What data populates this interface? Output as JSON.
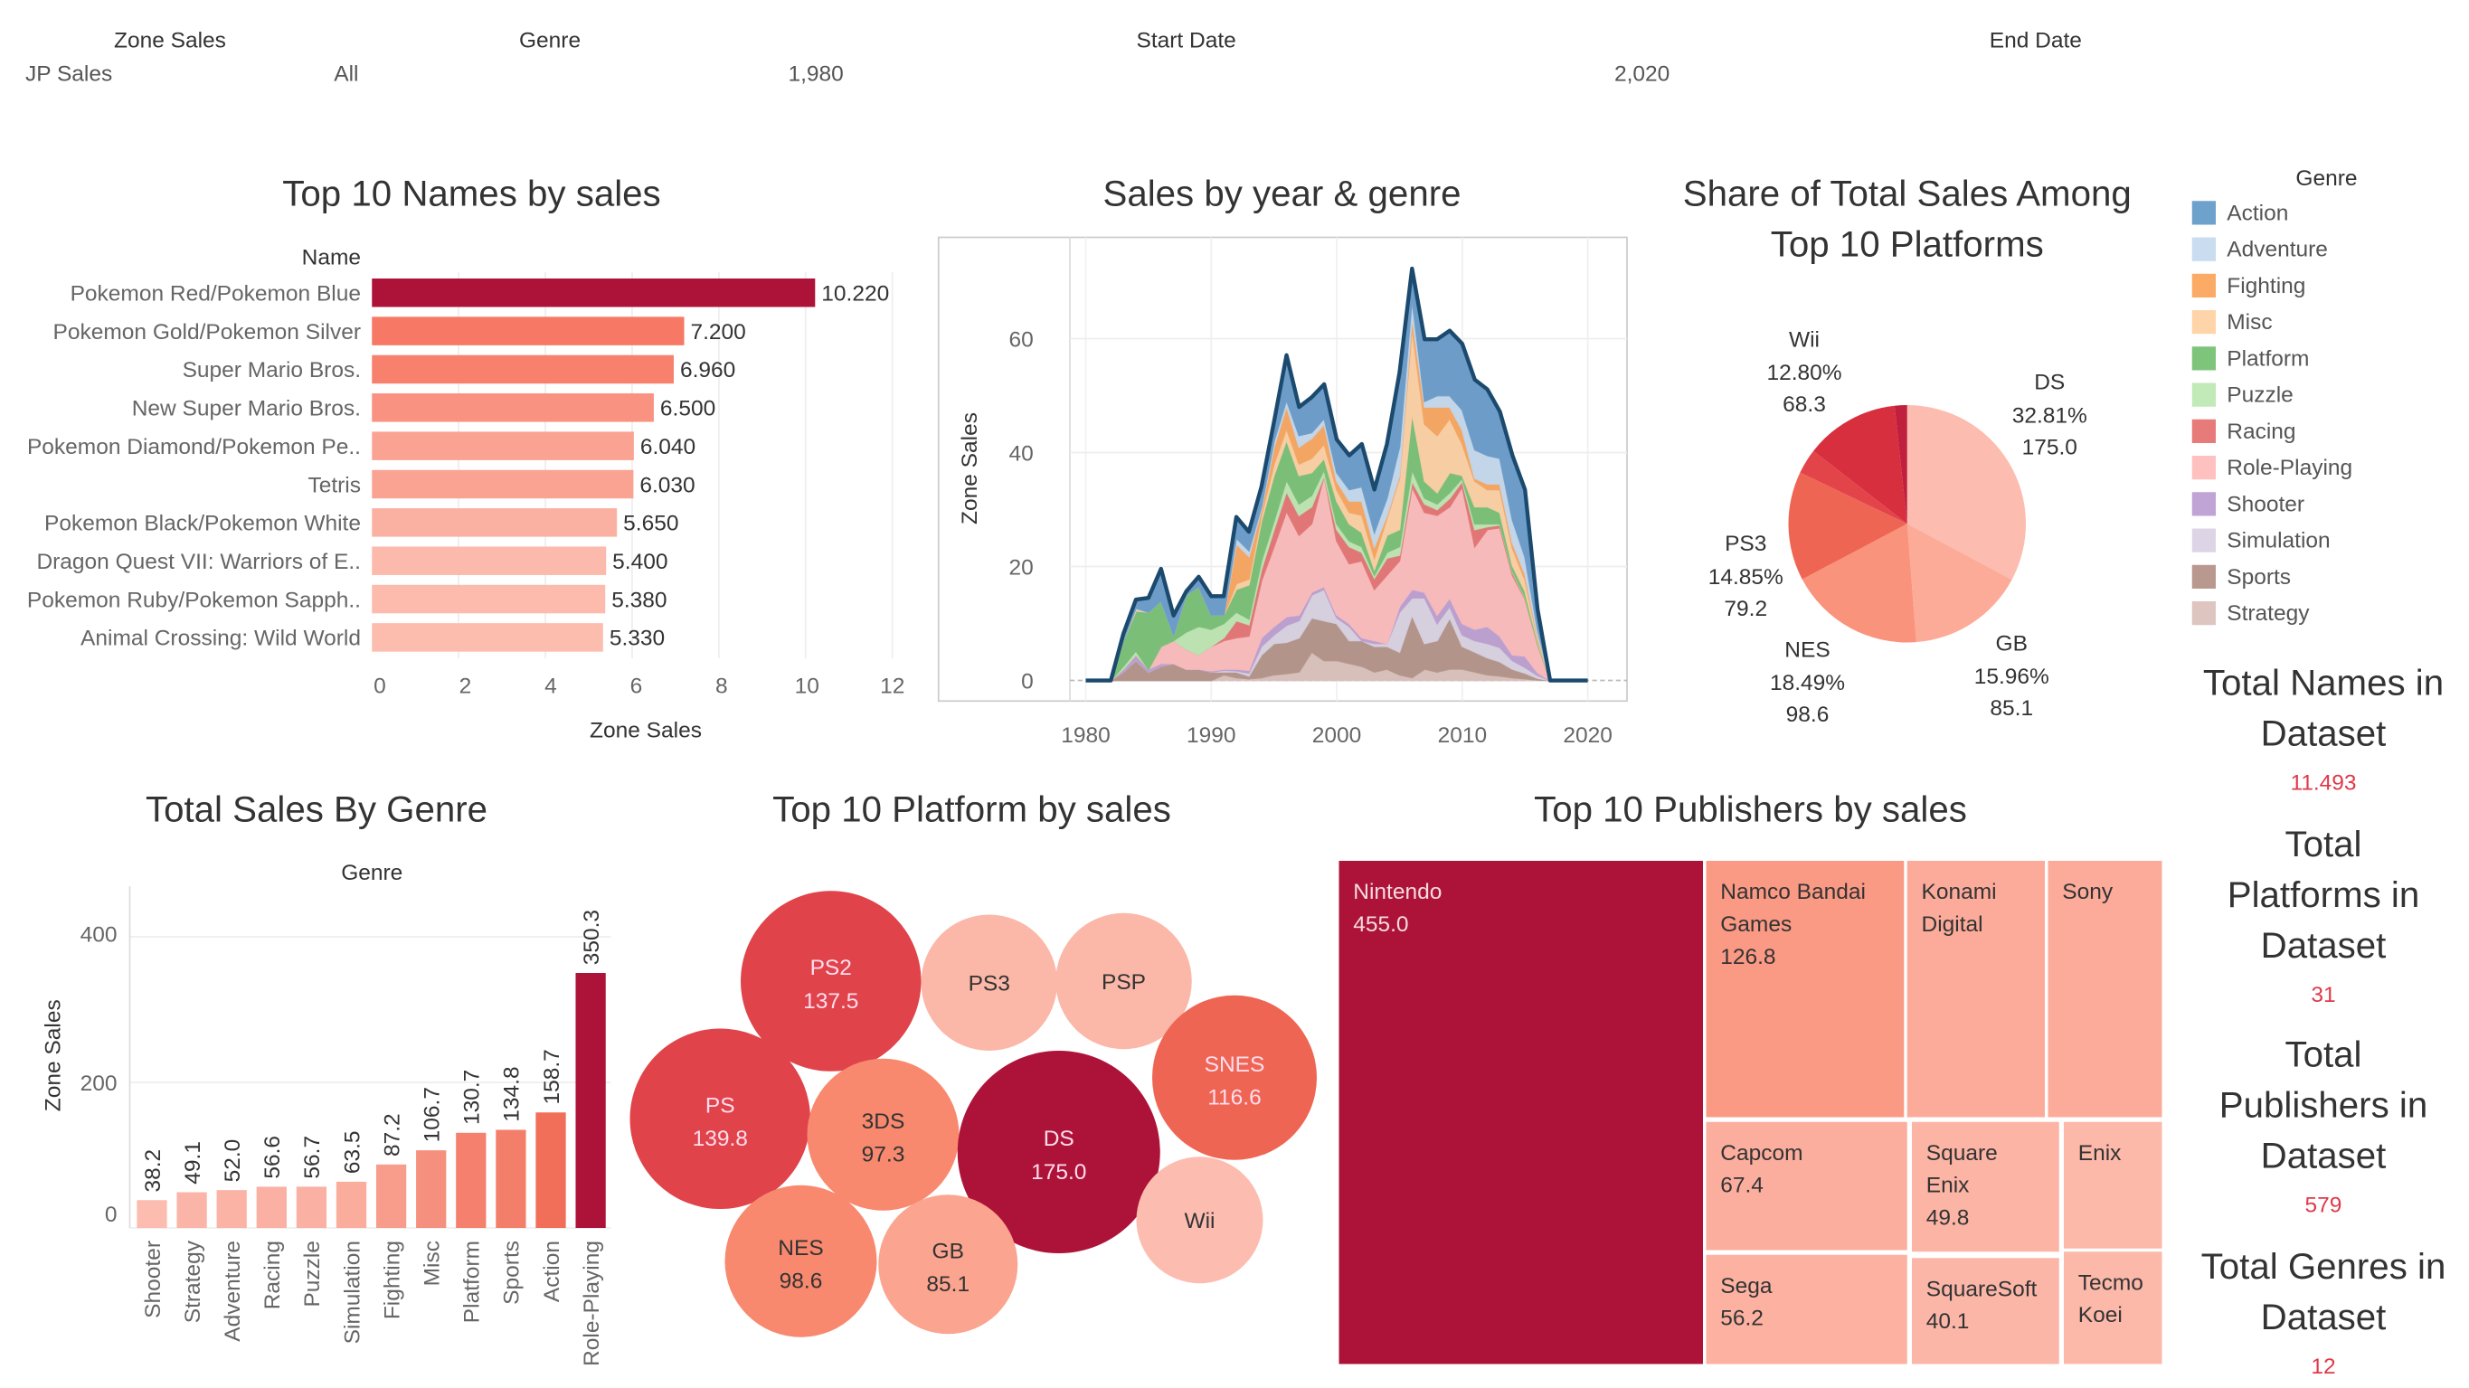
{
  "filters": [
    {
      "label": "Zone Sales",
      "value": "JP Sales"
    },
    {
      "label": "Genre",
      "value": "All"
    },
    {
      "label": "Start Date",
      "value": "1,980"
    },
    {
      "label": "End Date",
      "value": "2,020"
    }
  ],
  "legend": {
    "title": "Genre",
    "items": [
      {
        "label": "Action",
        "color": "#6fa1cd"
      },
      {
        "label": "Adventure",
        "color": "#c9dcf0"
      },
      {
        "label": "Fighting",
        "color": "#fbab66"
      },
      {
        "label": "Misc",
        "color": "#ffd4a8"
      },
      {
        "label": "Platform",
        "color": "#7ec47b"
      },
      {
        "label": "Puzzle",
        "color": "#c2e9b8"
      },
      {
        "label": "Racing",
        "color": "#e77b7a"
      },
      {
        "label": "Role-Playing",
        "color": "#ffc0c0"
      },
      {
        "label": "Shooter",
        "color": "#c0a4d5"
      },
      {
        "label": "Simulation",
        "color": "#ddd5e5"
      },
      {
        "label": "Sports",
        "color": "#b9998f"
      },
      {
        "label": "Strategy",
        "color": "#dec5c0"
      }
    ]
  },
  "kpis": [
    {
      "title_lines": [
        "Total Names in",
        "Dataset"
      ],
      "value": "11.493"
    },
    {
      "title_lines": [
        "Total",
        "Platforms in",
        "Dataset"
      ],
      "value": "31"
    },
    {
      "title_lines": [
        "Total",
        "Publishers in",
        "Dataset"
      ],
      "value": "579"
    },
    {
      "title_lines": [
        "Total Genres in",
        "Dataset"
      ],
      "value": "12"
    }
  ],
  "colors": {
    "accent_dark": "#ad1338",
    "kpi_value": "#e0394a",
    "area_outline": "#1b4a6e"
  },
  "chart_data": [
    {
      "id": "top_names",
      "type": "bar",
      "orientation": "horizontal",
      "title": "Top 10 Names by sales",
      "category_header": "Name",
      "xlabel": "Zone Sales",
      "xlim": [
        0,
        12
      ],
      "xticks": [
        0,
        2,
        4,
        6,
        8,
        10,
        12
      ],
      "categories": [
        "Pokemon Red/Pokemon Blue",
        "Pokemon Gold/Pokemon Silver",
        "Super Mario Bros.",
        "New Super Mario Bros.",
        "Pokemon Diamond/Pokemon Pe..",
        "Tetris",
        "Pokemon Black/Pokemon White",
        "Dragon Quest VII: Warriors of E..",
        "Pokemon Ruby/Pokemon Sapph..",
        "Animal Crossing: Wild World"
      ],
      "values": [
        10.22,
        7.2,
        6.96,
        6.5,
        6.04,
        6.03,
        5.65,
        5.4,
        5.38,
        5.33
      ],
      "labels": [
        "10.220",
        "7.200",
        "6.960",
        "6.500",
        "6.040",
        "6.030",
        "5.650",
        "5.400",
        "5.380",
        "5.330"
      ]
    },
    {
      "id": "sales_year_genre",
      "type": "area",
      "stacked": true,
      "title": "Sales by year & genre",
      "ylabel": "Zone Sales",
      "xlim": [
        1980,
        2020
      ],
      "ylim": [
        0,
        75
      ],
      "xticks": [
        1980,
        1990,
        2000,
        2010,
        2020
      ],
      "yticks": [
        0,
        20,
        40,
        60
      ],
      "grid": true,
      "x": [
        1980,
        1981,
        1982,
        1983,
        1984,
        1985,
        1986,
        1987,
        1988,
        1989,
        1990,
        1991,
        1992,
        1993,
        1994,
        1995,
        1996,
        1997,
        1998,
        1999,
        2000,
        2001,
        2002,
        2003,
        2004,
        2005,
        2006,
        2007,
        2008,
        2009,
        2010,
        2011,
        2012,
        2013,
        2014,
        2015,
        2016,
        2017,
        2018,
        2019,
        2020
      ],
      "series_order_bottom_to_top": [
        "Strategy",
        "Sports",
        "Simulation",
        "Shooter",
        "Role-Playing",
        "Racing",
        "Puzzle",
        "Platform",
        "Misc",
        "Fighting",
        "Adventure",
        "Action"
      ],
      "series": [
        {
          "name": "Strategy",
          "values": [
            0,
            0,
            0,
            0,
            0,
            0,
            0,
            0,
            0,
            0,
            0,
            1,
            0.5,
            0.3,
            0.5,
            1,
            1.2,
            1.5,
            5,
            3.5,
            3.5,
            3,
            2.5,
            1.5,
            2,
            1,
            0.5,
            2,
            1.5,
            2,
            2,
            1.5,
            1,
            0.8,
            0.5,
            0.3,
            0.1,
            0,
            0,
            0,
            0
          ]
        },
        {
          "name": "Sports",
          "values": [
            0,
            0,
            0,
            1.5,
            3.5,
            1.5,
            2.5,
            3,
            2,
            2,
            1.5,
            0.5,
            1,
            0.5,
            4,
            5.5,
            5.5,
            6,
            6,
            7,
            6.5,
            4,
            4.5,
            4.5,
            4,
            4,
            11,
            4.5,
            5.5,
            9,
            4,
            3.5,
            3,
            2.5,
            1.5,
            1,
            0.3,
            0,
            0,
            0,
            0
          ]
        },
        {
          "name": "Simulation",
          "values": [
            0,
            0,
            0,
            0,
            0,
            0,
            0,
            0,
            0,
            0,
            0,
            0.3,
            0.2,
            0.5,
            1.5,
            1.5,
            3,
            3,
            4,
            5.5,
            1,
            2.5,
            0,
            0.5,
            0.5,
            7,
            3,
            8,
            3,
            2,
            2,
            2,
            2.5,
            2.5,
            1.5,
            1,
            0.5,
            0,
            0,
            0,
            0
          ]
        },
        {
          "name": "Shooter",
          "values": [
            0,
            0,
            0,
            0.5,
            1,
            0.5,
            0.5,
            0,
            0,
            0,
            0.2,
            0.2,
            0.3,
            0.5,
            1.5,
            1.5,
            1.5,
            1,
            0.5,
            0.5,
            0.5,
            0.5,
            0.5,
            0.5,
            0,
            1,
            1.5,
            1,
            1.5,
            1.5,
            2,
            2,
            3,
            2,
            1,
            2,
            0.5,
            0,
            0,
            0,
            0
          ]
        },
        {
          "name": "Role-Playing",
          "values": [
            0,
            0,
            0,
            0,
            0,
            0,
            3,
            4,
            3.5,
            2.5,
            4.3,
            5,
            5.5,
            6,
            10,
            14,
            18.5,
            14,
            12,
            19.5,
            13,
            10.5,
            13.5,
            9,
            12,
            8,
            18,
            14,
            17.5,
            16,
            24,
            14.5,
            17,
            19,
            14,
            10,
            5,
            0,
            0,
            0,
            0
          ]
        },
        {
          "name": "Racing",
          "values": [
            0,
            0,
            0,
            0,
            0,
            0,
            0,
            0,
            0,
            0,
            0,
            0.5,
            3,
            2,
            2,
            3,
            3.5,
            3.5,
            3,
            0,
            2,
            3,
            1.5,
            2,
            3,
            1,
            1,
            1.5,
            1,
            1.5,
            1,
            3,
            0.5,
            0.5,
            0.5,
            0.2,
            0.1,
            0,
            0,
            0,
            0
          ]
        },
        {
          "name": "Puzzle",
          "values": [
            0,
            0,
            0,
            0.5,
            0.7,
            0,
            0,
            0,
            3,
            5,
            3,
            2.5,
            1.5,
            1,
            1.5,
            1.5,
            2,
            2,
            2,
            1,
            1,
            1,
            1,
            0.5,
            1,
            1.5,
            2,
            1,
            1,
            1,
            0.5,
            1,
            0.5,
            0.2,
            0.2,
            0.2,
            0,
            0,
            0,
            0,
            0
          ]
        },
        {
          "name": "Platform",
          "values": [
            0,
            0,
            0,
            4.5,
            7,
            10,
            8,
            1,
            6.5,
            7,
            2.5,
            1.5,
            4,
            6,
            7,
            8,
            7,
            5,
            4,
            2,
            4,
            3,
            2.5,
            1,
            3,
            3,
            10,
            3,
            2,
            3.5,
            0.5,
            3,
            3,
            2,
            1,
            1,
            0.5,
            0,
            0,
            0,
            0
          ]
        },
        {
          "name": "Misc",
          "values": [
            0,
            0,
            0,
            0,
            0.3,
            0,
            0,
            0,
            0,
            0,
            0,
            0,
            1,
            1,
            1,
            2,
            2,
            2,
            2.5,
            2.5,
            2,
            2,
            3,
            2,
            3,
            9,
            15,
            10,
            10,
            9.5,
            5.5,
            4.5,
            3,
            4,
            3,
            2,
            0.5,
            0,
            0,
            0,
            0
          ]
        },
        {
          "name": "Fighting",
          "values": [
            0,
            0,
            0,
            0,
            0,
            0,
            0,
            0,
            0,
            0,
            0,
            0,
            7,
            4,
            1,
            3,
            4,
            3,
            3.5,
            3.5,
            1.5,
            2,
            2.5,
            2,
            0.5,
            0.5,
            2,
            3,
            5,
            2,
            2.5,
            0.5,
            1,
            1,
            1,
            1,
            0.5,
            0,
            0,
            0,
            0
          ]
        },
        {
          "name": "Adventure",
          "values": [
            0,
            0,
            0,
            0,
            0.2,
            0,
            0,
            0,
            0,
            0,
            0,
            0,
            1,
            1,
            0.5,
            1,
            1,
            2,
            1,
            1,
            1.5,
            2,
            2.5,
            2.5,
            3,
            5,
            3,
            1,
            2,
            2,
            3.5,
            5,
            5,
            4.5,
            4,
            3,
            1,
            0,
            0,
            0,
            0
          ]
        },
        {
          "name": "Action",
          "values": [
            0,
            0,
            0,
            1.2,
            1.5,
            2.5,
            5.6,
            3.4,
            0.6,
            1.7,
            3.3,
            3.3,
            3.7,
            3.3,
            3.5,
            3.4,
            7.9,
            5,
            6.2,
            6,
            5.8,
            6,
            7.5,
            7.5,
            9.5,
            13,
            5.3,
            10.9,
            9.9,
            11.4,
            11.6,
            12.3,
            11.6,
            8.2,
            11.3,
            11.8,
            3.5,
            0,
            0,
            0,
            0
          ]
        }
      ]
    },
    {
      "id": "platform_share",
      "type": "pie",
      "title_lines": [
        "Share of Total Sales Among",
        "Top 10 Platforms"
      ],
      "slices": [
        {
          "label": "DS",
          "percent": 32.81,
          "percent_label": "32.81%",
          "value": "175.0",
          "color": "#fcbcb0"
        },
        {
          "label": "GB",
          "percent": 15.96,
          "percent_label": "15.96%",
          "value": "85.1",
          "color": "#fcab98"
        },
        {
          "label": "NES",
          "percent": 18.49,
          "percent_label": "18.49%",
          "value": "98.6",
          "color": "#f9937c"
        },
        {
          "label": "PS3",
          "percent": 14.85,
          "percent_label": "14.85%",
          "value": "79.2",
          "color": "#ef6553"
        },
        {
          "label": "",
          "percent": 3.4,
          "color": "#e3444a"
        },
        {
          "label": "Wii",
          "percent": 12.8,
          "percent_label": "12.80%",
          "value": "68.3",
          "color": "#d82f3f"
        },
        {
          "label": "",
          "percent": 1.69,
          "color": "#c01f3d"
        }
      ]
    },
    {
      "id": "genre_totals",
      "type": "bar",
      "title": "Total Sales By Genre",
      "category_header": "Genre",
      "ylabel": "Zone Sales",
      "ylim": [
        0,
        470
      ],
      "yticks": [
        0,
        200,
        400
      ],
      "categories": [
        "Shooter",
        "Strategy",
        "Adventure",
        "Racing",
        "Puzzle",
        "Simulation",
        "Fighting",
        "Misc",
        "Platform",
        "Sports",
        "Action",
        "Role-Playing"
      ],
      "values": [
        38.2,
        49.1,
        52.0,
        56.6,
        56.7,
        63.5,
        87.2,
        106.7,
        130.7,
        134.8,
        158.7,
        350.3
      ],
      "labels": [
        "38.2",
        "49.1",
        "52.0",
        "56.6",
        "56.7",
        "63.5",
        "87.2",
        "106.7",
        "130.7",
        "134.8",
        "158.7",
        "350.3"
      ]
    },
    {
      "id": "platform_bubbles",
      "type": "bubble",
      "title": "Top 10 Platform by sales",
      "bubbles": [
        {
          "label": "PS2",
          "value": "137.5",
          "color": "#e0434a"
        },
        {
          "label": "PS",
          "value": "139.8",
          "color": "#e0434a"
        },
        {
          "label": "PS3",
          "value": "",
          "color": "#fbb7a8"
        },
        {
          "label": "PSP",
          "value": "",
          "color": "#fbb7a8"
        },
        {
          "label": "SNES",
          "value": "116.6",
          "color": "#ef6553"
        },
        {
          "label": "3DS",
          "value": "97.3",
          "color": "#f8896f"
        },
        {
          "label": "DS",
          "value": "175.0",
          "color": "#ad1338"
        },
        {
          "label": "NES",
          "value": "98.6",
          "color": "#f8896f"
        },
        {
          "label": "GB",
          "value": "85.1",
          "color": "#fba48f"
        },
        {
          "label": "Wii",
          "value": "",
          "color": "#fcbdb0"
        }
      ]
    },
    {
      "id": "publishers_treemap",
      "type": "treemap",
      "title": "Top 10 Publishers by sales",
      "cells": [
        {
          "label": "Nintendo",
          "value": "455.0",
          "color": "#ad1338"
        },
        {
          "label": "Namco Bandai Games",
          "value": "126.8",
          "color": "#fa9984"
        },
        {
          "label": "Konami Digital",
          "value": "",
          "color": "#fcab9b"
        },
        {
          "label": "Sony",
          "value": "",
          "color": "#fcab9b"
        },
        {
          "label": "Capcom",
          "value": "67.4",
          "color": "#fcae9e"
        },
        {
          "label": "Square Enix",
          "value": "49.8",
          "color": "#fcb4a5"
        },
        {
          "label": "Enix",
          "value": "",
          "color": "#fcb8a9"
        },
        {
          "label": "Sega",
          "value": "56.2",
          "color": "#fcb1a1"
        },
        {
          "label": "SquareSoft",
          "value": "40.1",
          "color": "#fcb6a8"
        },
        {
          "label": "Tecmo Koei",
          "value": "",
          "color": "#fcb8a9"
        }
      ]
    }
  ]
}
